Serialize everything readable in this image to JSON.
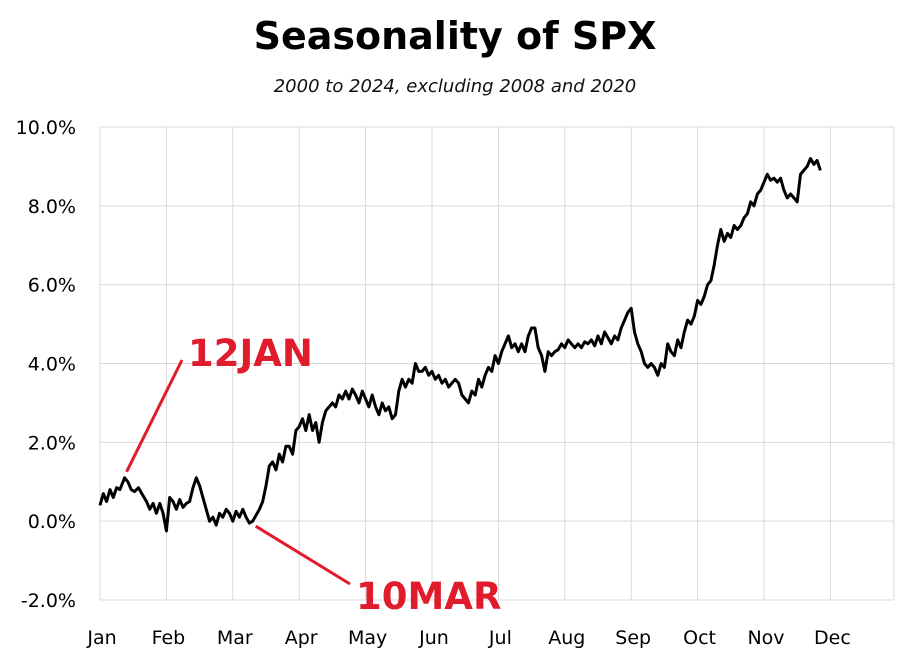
{
  "chart_data": {
    "type": "line",
    "title": "Seasonality of SPX",
    "subtitle": "2000 to 2024, excluding 2008 and 2020",
    "xlabel": "",
    "ylabel": "",
    "x_tick_labels": [
      "Jan",
      "Feb",
      "Mar",
      "Apr",
      "May",
      "Jun",
      "Jul",
      "Aug",
      "Sep",
      "Oct",
      "Nov",
      "Dec"
    ],
    "y_tick_labels": [
      "10.0%",
      "8.0%",
      "6.0%",
      "4.0%",
      "2.0%",
      "0.0%",
      "-2.0%"
    ],
    "ylim": [
      -2.0,
      10.0
    ],
    "y_unit": "%",
    "grid": true,
    "line_color": "#000000",
    "annotation_color": "#e01b2b",
    "annotations": [
      {
        "text": "12JAN",
        "x": 0.37,
        "y": 1.1
      },
      {
        "text": "10MAR",
        "x": 2.3,
        "y": 0.0
      }
    ],
    "series": [
      {
        "points": [
          [
            0.0,
            0.4
          ],
          [
            0.05,
            0.7
          ],
          [
            0.1,
            0.5
          ],
          [
            0.15,
            0.8
          ],
          [
            0.2,
            0.6
          ],
          [
            0.25,
            0.85
          ],
          [
            0.3,
            0.8
          ],
          [
            0.37,
            1.1
          ],
          [
            0.42,
            1.0
          ],
          [
            0.47,
            0.8
          ],
          [
            0.52,
            0.75
          ],
          [
            0.58,
            0.85
          ],
          [
            0.63,
            0.7
          ],
          [
            0.7,
            0.5
          ],
          [
            0.75,
            0.3
          ],
          [
            0.8,
            0.45
          ],
          [
            0.85,
            0.2
          ],
          [
            0.9,
            0.45
          ],
          [
            0.95,
            0.2
          ],
          [
            1.0,
            -0.25
          ],
          [
            1.05,
            0.6
          ],
          [
            1.1,
            0.5
          ],
          [
            1.15,
            0.3
          ],
          [
            1.2,
            0.55
          ],
          [
            1.25,
            0.35
          ],
          [
            1.3,
            0.45
          ],
          [
            1.35,
            0.5
          ],
          [
            1.4,
            0.85
          ],
          [
            1.45,
            1.1
          ],
          [
            1.5,
            0.9
          ],
          [
            1.55,
            0.6
          ],
          [
            1.6,
            0.3
          ],
          [
            1.65,
            0.0
          ],
          [
            1.7,
            0.1
          ],
          [
            1.75,
            -0.1
          ],
          [
            1.8,
            0.2
          ],
          [
            1.85,
            0.1
          ],
          [
            1.9,
            0.3
          ],
          [
            1.95,
            0.2
          ],
          [
            2.0,
            0.0
          ],
          [
            2.05,
            0.25
          ],
          [
            2.1,
            0.1
          ],
          [
            2.15,
            0.3
          ],
          [
            2.2,
            0.1
          ],
          [
            2.25,
            -0.05
          ],
          [
            2.3,
            0.0
          ],
          [
            2.35,
            0.15
          ],
          [
            2.4,
            0.3
          ],
          [
            2.45,
            0.5
          ],
          [
            2.5,
            0.9
          ],
          [
            2.55,
            1.4
          ],
          [
            2.6,
            1.5
          ],
          [
            2.65,
            1.3
          ],
          [
            2.7,
            1.7
          ],
          [
            2.75,
            1.5
          ],
          [
            2.8,
            1.9
          ],
          [
            2.85,
            1.9
          ],
          [
            2.9,
            1.7
          ],
          [
            2.95,
            2.3
          ],
          [
            3.0,
            2.4
          ],
          [
            3.05,
            2.6
          ],
          [
            3.1,
            2.3
          ],
          [
            3.15,
            2.7
          ],
          [
            3.2,
            2.3
          ],
          [
            3.25,
            2.5
          ],
          [
            3.3,
            2.0
          ],
          [
            3.35,
            2.5
          ],
          [
            3.4,
            2.8
          ],
          [
            3.45,
            2.9
          ],
          [
            3.5,
            3.0
          ],
          [
            3.55,
            2.9
          ],
          [
            3.6,
            3.2
          ],
          [
            3.65,
            3.1
          ],
          [
            3.7,
            3.3
          ],
          [
            3.75,
            3.1
          ],
          [
            3.8,
            3.35
          ],
          [
            3.85,
            3.2
          ],
          [
            3.9,
            3.0
          ],
          [
            3.95,
            3.3
          ],
          [
            4.0,
            3.1
          ],
          [
            4.05,
            2.9
          ],
          [
            4.1,
            3.2
          ],
          [
            4.15,
            2.9
          ],
          [
            4.2,
            2.7
          ],
          [
            4.25,
            3.0
          ],
          [
            4.3,
            2.8
          ],
          [
            4.35,
            2.9
          ],
          [
            4.4,
            2.6
          ],
          [
            4.45,
            2.7
          ],
          [
            4.5,
            3.3
          ],
          [
            4.55,
            3.6
          ],
          [
            4.6,
            3.4
          ],
          [
            4.65,
            3.6
          ],
          [
            4.7,
            3.5
          ],
          [
            4.75,
            4.0
          ],
          [
            4.8,
            3.8
          ],
          [
            4.85,
            3.8
          ],
          [
            4.9,
            3.9
          ],
          [
            4.95,
            3.7
          ],
          [
            5.0,
            3.8
          ],
          [
            5.05,
            3.6
          ],
          [
            5.1,
            3.7
          ],
          [
            5.15,
            3.5
          ],
          [
            5.2,
            3.6
          ],
          [
            5.25,
            3.4
          ],
          [
            5.3,
            3.5
          ],
          [
            5.35,
            3.6
          ],
          [
            5.4,
            3.5
          ],
          [
            5.45,
            3.2
          ],
          [
            5.5,
            3.1
          ],
          [
            5.55,
            3.0
          ],
          [
            5.6,
            3.3
          ],
          [
            5.65,
            3.2
          ],
          [
            5.7,
            3.6
          ],
          [
            5.75,
            3.4
          ],
          [
            5.8,
            3.7
          ],
          [
            5.85,
            3.9
          ],
          [
            5.9,
            3.8
          ],
          [
            5.95,
            4.2
          ],
          [
            6.0,
            4.0
          ],
          [
            6.05,
            4.3
          ],
          [
            6.1,
            4.5
          ],
          [
            6.15,
            4.7
          ],
          [
            6.2,
            4.4
          ],
          [
            6.25,
            4.5
          ],
          [
            6.3,
            4.3
          ],
          [
            6.35,
            4.5
          ],
          [
            6.4,
            4.3
          ],
          [
            6.45,
            4.7
          ],
          [
            6.5,
            4.9
          ],
          [
            6.55,
            4.9
          ],
          [
            6.6,
            4.4
          ],
          [
            6.65,
            4.2
          ],
          [
            6.7,
            3.8
          ],
          [
            6.75,
            4.3
          ],
          [
            6.8,
            4.2
          ],
          [
            6.85,
            4.3
          ],
          [
            6.9,
            4.35
          ],
          [
            6.95,
            4.5
          ],
          [
            7.0,
            4.4
          ],
          [
            7.05,
            4.6
          ],
          [
            7.1,
            4.5
          ],
          [
            7.15,
            4.4
          ],
          [
            7.2,
            4.5
          ],
          [
            7.25,
            4.4
          ],
          [
            7.3,
            4.55
          ],
          [
            7.35,
            4.5
          ],
          [
            7.4,
            4.6
          ],
          [
            7.45,
            4.45
          ],
          [
            7.5,
            4.7
          ],
          [
            7.55,
            4.5
          ],
          [
            7.6,
            4.8
          ],
          [
            7.65,
            4.65
          ],
          [
            7.7,
            4.5
          ],
          [
            7.75,
            4.7
          ],
          [
            7.8,
            4.6
          ],
          [
            7.85,
            4.9
          ],
          [
            7.9,
            5.1
          ],
          [
            7.95,
            5.3
          ],
          [
            8.0,
            5.4
          ],
          [
            8.05,
            4.8
          ],
          [
            8.1,
            4.5
          ],
          [
            8.15,
            4.3
          ],
          [
            8.2,
            4.0
          ],
          [
            8.25,
            3.9
          ],
          [
            8.3,
            4.0
          ],
          [
            8.35,
            3.9
          ],
          [
            8.4,
            3.7
          ],
          [
            8.45,
            4.0
          ],
          [
            8.5,
            3.9
          ],
          [
            8.55,
            4.5
          ],
          [
            8.6,
            4.3
          ],
          [
            8.65,
            4.2
          ],
          [
            8.7,
            4.6
          ],
          [
            8.75,
            4.4
          ],
          [
            8.8,
            4.8
          ],
          [
            8.85,
            5.1
          ],
          [
            8.9,
            5.0
          ],
          [
            8.95,
            5.2
          ],
          [
            9.0,
            5.6
          ],
          [
            9.05,
            5.5
          ],
          [
            9.1,
            5.7
          ],
          [
            9.15,
            6.0
          ],
          [
            9.2,
            6.1
          ],
          [
            9.25,
            6.5
          ],
          [
            9.3,
            7.0
          ],
          [
            9.35,
            7.4
          ],
          [
            9.4,
            7.1
          ],
          [
            9.45,
            7.3
          ],
          [
            9.5,
            7.2
          ],
          [
            9.55,
            7.5
          ],
          [
            9.6,
            7.4
          ],
          [
            9.65,
            7.5
          ],
          [
            9.7,
            7.7
          ],
          [
            9.75,
            7.8
          ],
          [
            9.8,
            8.1
          ],
          [
            9.85,
            8.0
          ],
          [
            9.9,
            8.3
          ],
          [
            9.95,
            8.4
          ],
          [
            10.0,
            8.6
          ],
          [
            10.05,
            8.8
          ],
          [
            10.1,
            8.65
          ],
          [
            10.15,
            8.7
          ],
          [
            10.2,
            8.6
          ],
          [
            10.25,
            8.7
          ],
          [
            10.3,
            8.4
          ],
          [
            10.35,
            8.2
          ],
          [
            10.4,
            8.3
          ],
          [
            10.45,
            8.2
          ],
          [
            10.5,
            8.1
          ],
          [
            10.55,
            8.8
          ],
          [
            10.6,
            8.9
          ],
          [
            10.65,
            9.0
          ],
          [
            10.7,
            9.2
          ],
          [
            10.75,
            9.05
          ],
          [
            10.8,
            9.15
          ],
          [
            10.85,
            8.9
          ]
        ]
      }
    ]
  }
}
